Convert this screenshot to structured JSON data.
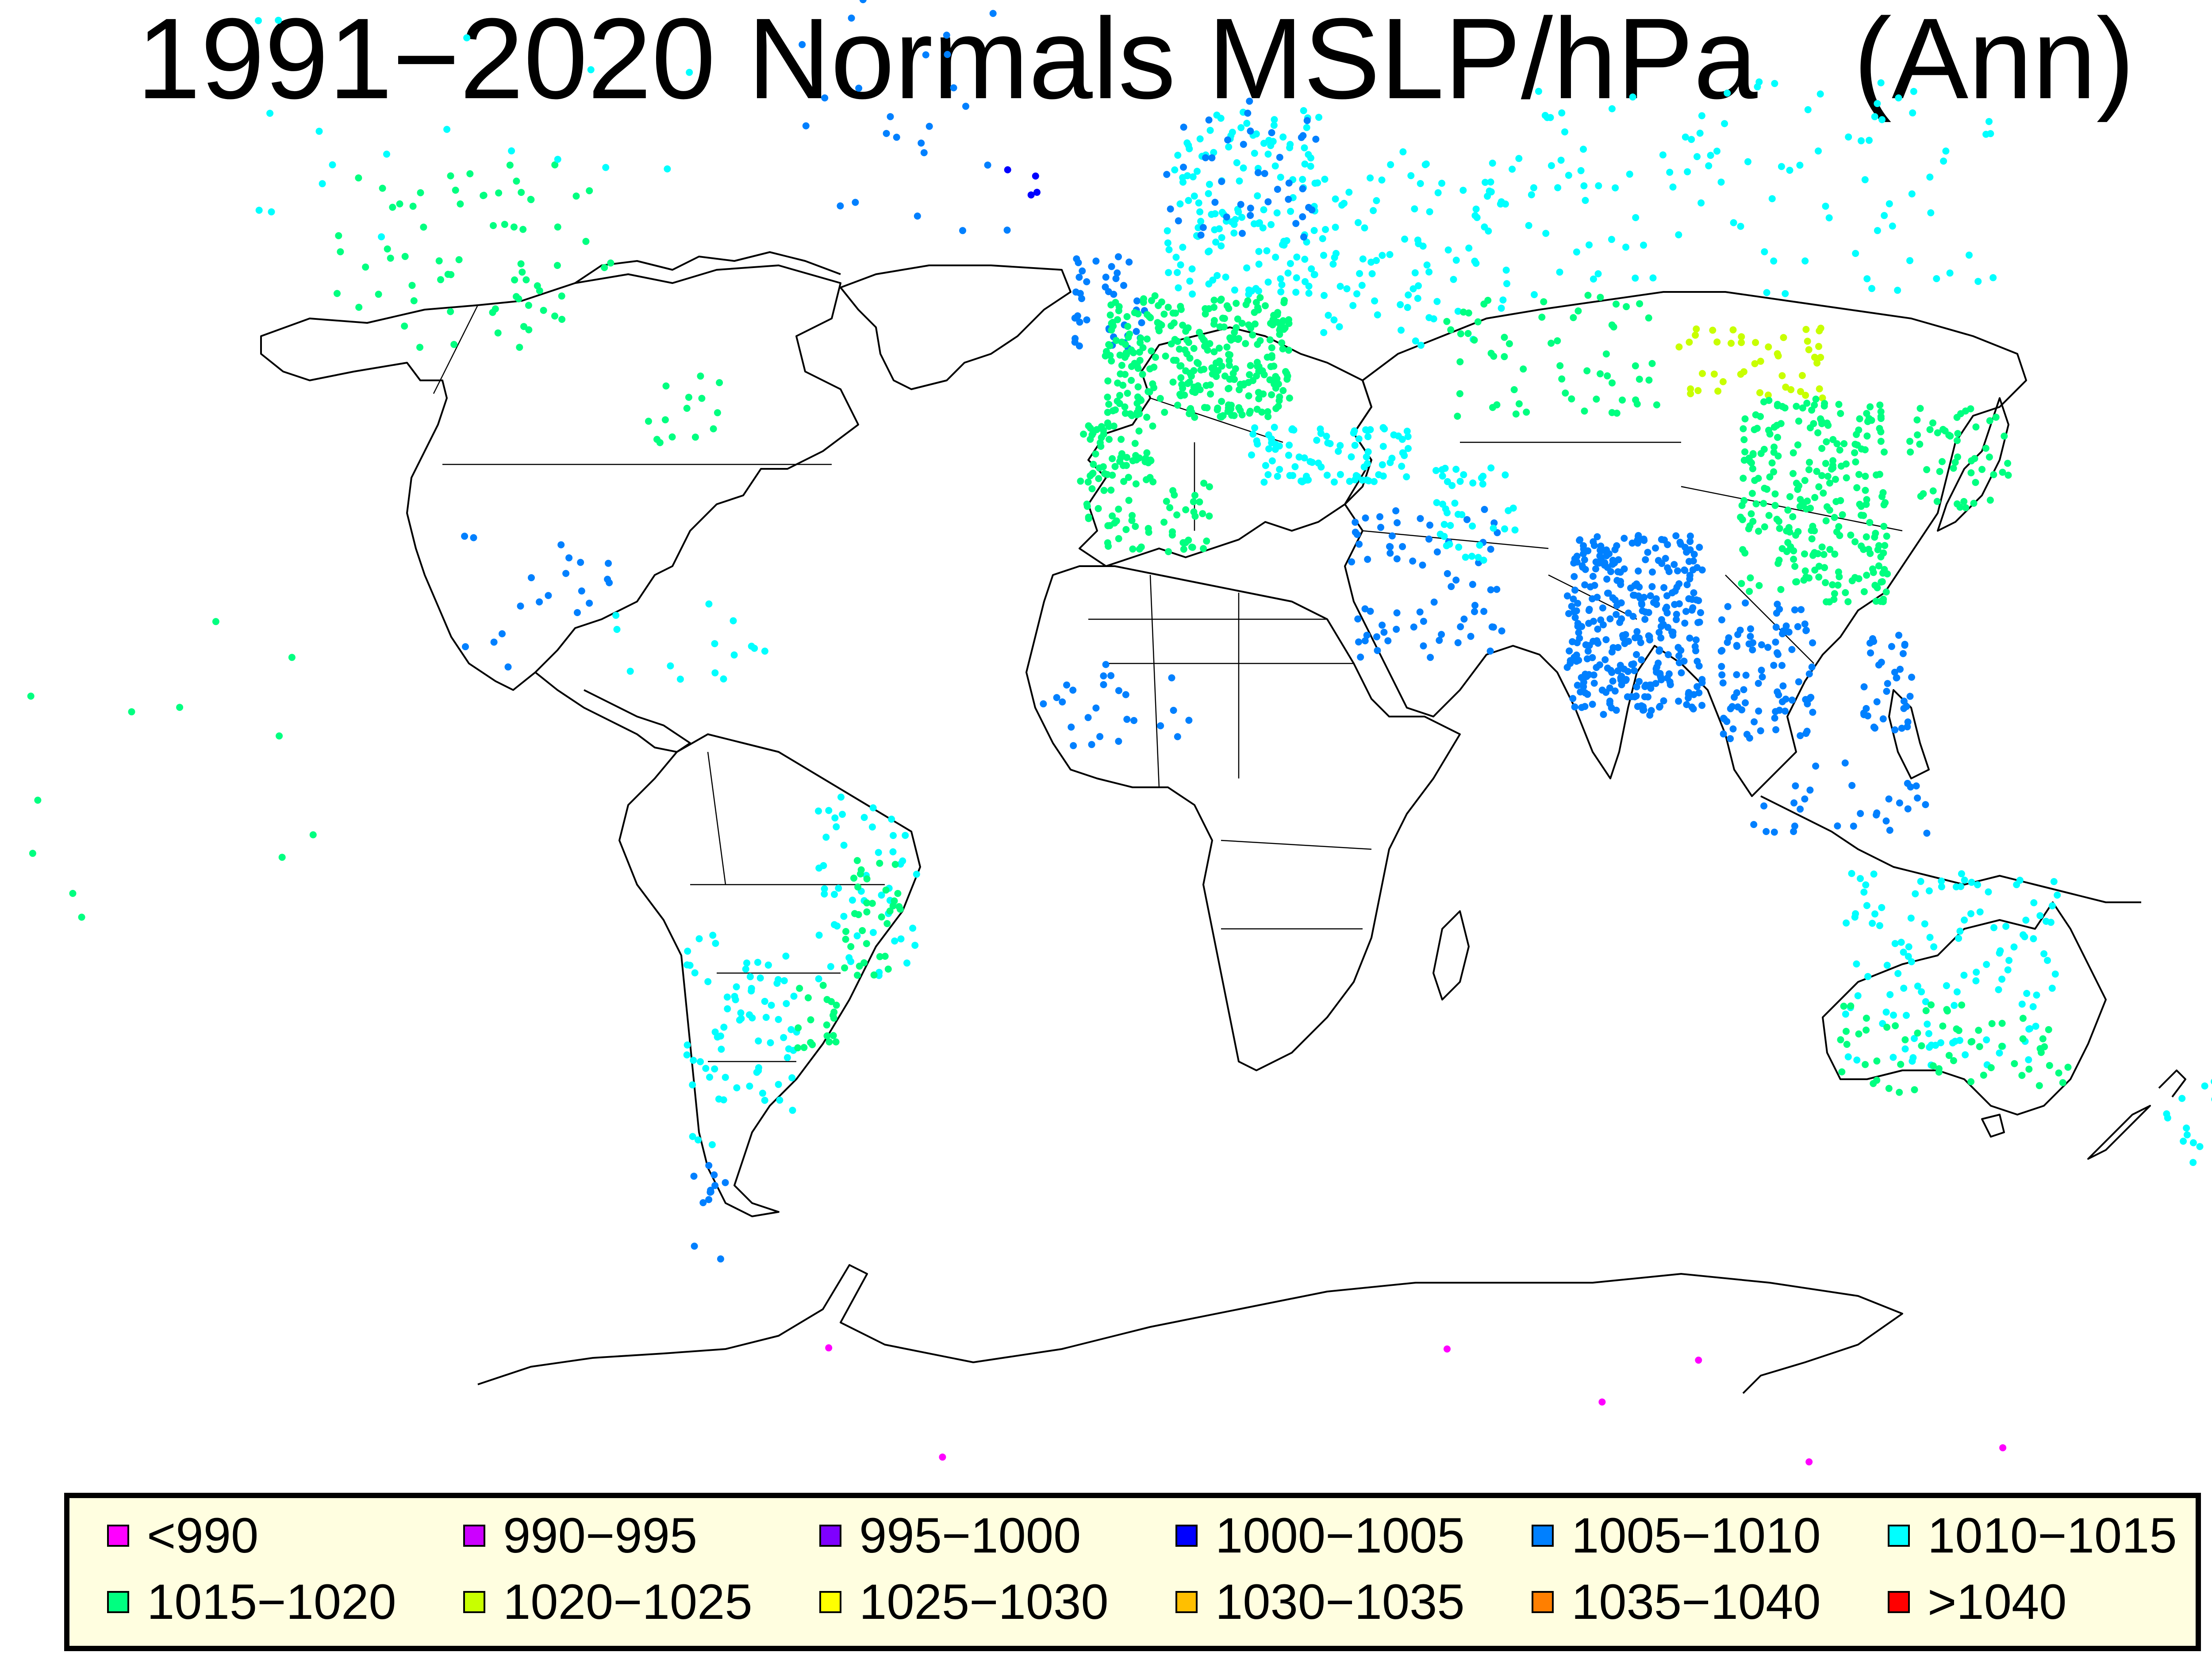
{
  "title": "1991−2020 Normals MSLP/hPa   (Ann)",
  "legend": {
    "items": [
      {
        "label": "<990",
        "color": "#ff00ff"
      },
      {
        "label": "990−995",
        "color": "#cc00ff"
      },
      {
        "label": "995−1000",
        "color": "#7f00ff"
      },
      {
        "label": "1000−1005",
        "color": "#0000ff"
      },
      {
        "label": "1005−1010",
        "color": "#0080ff"
      },
      {
        "label": "1010−1015",
        "color": "#00ffff"
      },
      {
        "label": "1015−1020",
        "color": "#00ff80"
      },
      {
        "label": "1020−1025",
        "color": "#c8ff00"
      },
      {
        "label": "1025−1030",
        "color": "#ffff00"
      },
      {
        "label": "1030−1035",
        "color": "#ffbf00"
      },
      {
        "label": "1035−1040",
        "color": "#ff7f00"
      },
      {
        "label": ">1040",
        "color": "#ff0000"
      }
    ]
  },
  "stations": [
    {
      "region": "canada",
      "category": 6,
      "lon": [
        -130,
        -85
      ],
      "lat": [
        50,
        66
      ],
      "count": 70
    },
    {
      "region": "alaska-arctic",
      "category": 5,
      "lon": [
        -150,
        -70
      ],
      "lat": [
        60,
        78
      ],
      "count": 20
    },
    {
      "region": "greenland",
      "category": 4,
      "lon": [
        -55,
        -20
      ],
      "lat": [
        60,
        82
      ],
      "count": 35
    },
    {
      "region": "iceland",
      "category": 3,
      "lon": [
        -24,
        -14
      ],
      "lat": [
        63,
        66
      ],
      "count": 4
    },
    {
      "region": "usa-east",
      "category": 6,
      "lon": [
        -80,
        -65
      ],
      "lat": [
        40,
        48
      ],
      "count": 14
    },
    {
      "region": "mexico-centralamerica",
      "category": 4,
      "lon": [
        -110,
        -85
      ],
      "lat": [
        14,
        30
      ],
      "count": 20
    },
    {
      "region": "caribbean",
      "category": 5,
      "lon": [
        -85,
        -60
      ],
      "lat": [
        12,
        22
      ],
      "count": 14
    },
    {
      "region": "scandinavia",
      "category": 5,
      "lon": [
        5,
        30
      ],
      "lat": [
        55,
        70
      ],
      "count": 150
    },
    {
      "region": "scandinavia-coast",
      "category": 4,
      "lon": [
        5,
        30
      ],
      "lat": [
        60,
        71
      ],
      "count": 40
    },
    {
      "region": "uk-ireland",
      "category": 4,
      "lon": [
        -10,
        2
      ],
      "lat": [
        50,
        59
      ],
      "count": 40
    },
    {
      "region": "western-europe",
      "category": 6,
      "lon": [
        -5,
        25
      ],
      "lat": [
        43,
        55
      ],
      "count": 320
    },
    {
      "region": "iberia",
      "category": 6,
      "lon": [
        -9,
        3
      ],
      "lat": [
        36,
        43
      ],
      "count": 60
    },
    {
      "region": "balkans-turkey",
      "category": 5,
      "lon": [
        18,
        45
      ],
      "lat": [
        36,
        42
      ],
      "count": 90
    },
    {
      "region": "russia-west",
      "category": 5,
      "lon": [
        30,
        60
      ],
      "lat": [
        50,
        67
      ],
      "count": 90
    },
    {
      "region": "siberia",
      "category": 5,
      "lon": [
        60,
        140
      ],
      "lat": [
        55,
        72
      ],
      "count": 110
    },
    {
      "region": "kazakhstan",
      "category": 6,
      "lon": [
        50,
        85
      ],
      "lat": [
        43,
        55
      ],
      "count": 60
    },
    {
      "region": "mongolia",
      "category": 7,
      "lon": [
        88,
        112
      ],
      "lat": [
        45,
        52
      ],
      "count": 45
    },
    {
      "region": "china",
      "category": 6,
      "lon": [
        98,
        122
      ],
      "lat": [
        22,
        45
      ],
      "count": 260
    },
    {
      "region": "korea-japan",
      "category": 6,
      "lon": [
        124,
        142
      ],
      "lat": [
        33,
        44
      ],
      "count": 50
    },
    {
      "region": "middle-east",
      "category": 4,
      "lon": [
        35,
        60
      ],
      "lat": [
        15,
        33
      ],
      "count": 70
    },
    {
      "region": "iran",
      "category": 5,
      "lon": [
        48,
        62
      ],
      "lat": [
        27,
        38
      ],
      "count": 40
    },
    {
      "region": "india",
      "category": 4,
      "lon": [
        70,
        92
      ],
      "lat": [
        8,
        30
      ],
      "count": 330
    },
    {
      "region": "southeast-asia",
      "category": 4,
      "lon": [
        95,
        110
      ],
      "lat": [
        5,
        22
      ],
      "count": 90
    },
    {
      "region": "philippines",
      "category": 4,
      "lon": [
        118,
        126
      ],
      "lat": [
        6,
        18
      ],
      "count": 35
    },
    {
      "region": "indonesia",
      "category": 4,
      "lon": [
        100,
        130
      ],
      "lat": [
        -8,
        2
      ],
      "count": 30
    },
    {
      "region": "north-africa",
      "category": 6,
      "lon": [
        -8,
        12
      ],
      "lat": [
        28,
        36
      ],
      "count": 55
    },
    {
      "region": "west-africa",
      "category": 4,
      "lon": [
        -15,
        10
      ],
      "lat": [
        4,
        15
      ],
      "count": 25
    },
    {
      "region": "brazil",
      "category": 5,
      "lon": [
        -52,
        -35
      ],
      "lat": [
        -25,
        -2
      ],
      "count": 50
    },
    {
      "region": "brazil-east",
      "category": 6,
      "lon": [
        -48,
        -38
      ],
      "lat": [
        -25,
        -10
      ],
      "count": 35
    },
    {
      "region": "argentina",
      "category": 5,
      "lon": [
        -68,
        -55
      ],
      "lat": [
        -40,
        -22
      ],
      "count": 55
    },
    {
      "region": "southern-brazil",
      "category": 6,
      "lon": [
        -55,
        -48
      ],
      "lat": [
        -33,
        -25
      ],
      "count": 20
    },
    {
      "region": "chile",
      "category": 5,
      "lon": [
        -73,
        -68
      ],
      "lat": [
        -45,
        -18
      ],
      "count": 20
    },
    {
      "region": "patagonia",
      "category": 4,
      "lon": [
        -72,
        -66
      ],
      "lat": [
        -55,
        -45
      ],
      "count": 12
    },
    {
      "region": "australia",
      "category": 5,
      "lon": [
        115,
        150
      ],
      "lat": [
        -35,
        -12
      ],
      "count": 120
    },
    {
      "region": "australia-south",
      "category": 6,
      "lon": [
        114,
        152
      ],
      "lat": [
        -38,
        -28
      ],
      "count": 60
    },
    {
      "region": "new-zealand",
      "category": 5,
      "lon": [
        167,
        178
      ],
      "lat": [
        -46,
        -35
      ],
      "count": 16
    },
    {
      "region": "antarctica",
      "category": 0,
      "lon": [
        -65,
        165
      ],
      "lat": [
        -78,
        -62
      ],
      "count": 10
    },
    {
      "region": "pacific-islands",
      "category": 6,
      "lon": [
        -180,
        -130
      ],
      "lat": [
        -25,
        20
      ],
      "count": 12
    }
  ]
}
